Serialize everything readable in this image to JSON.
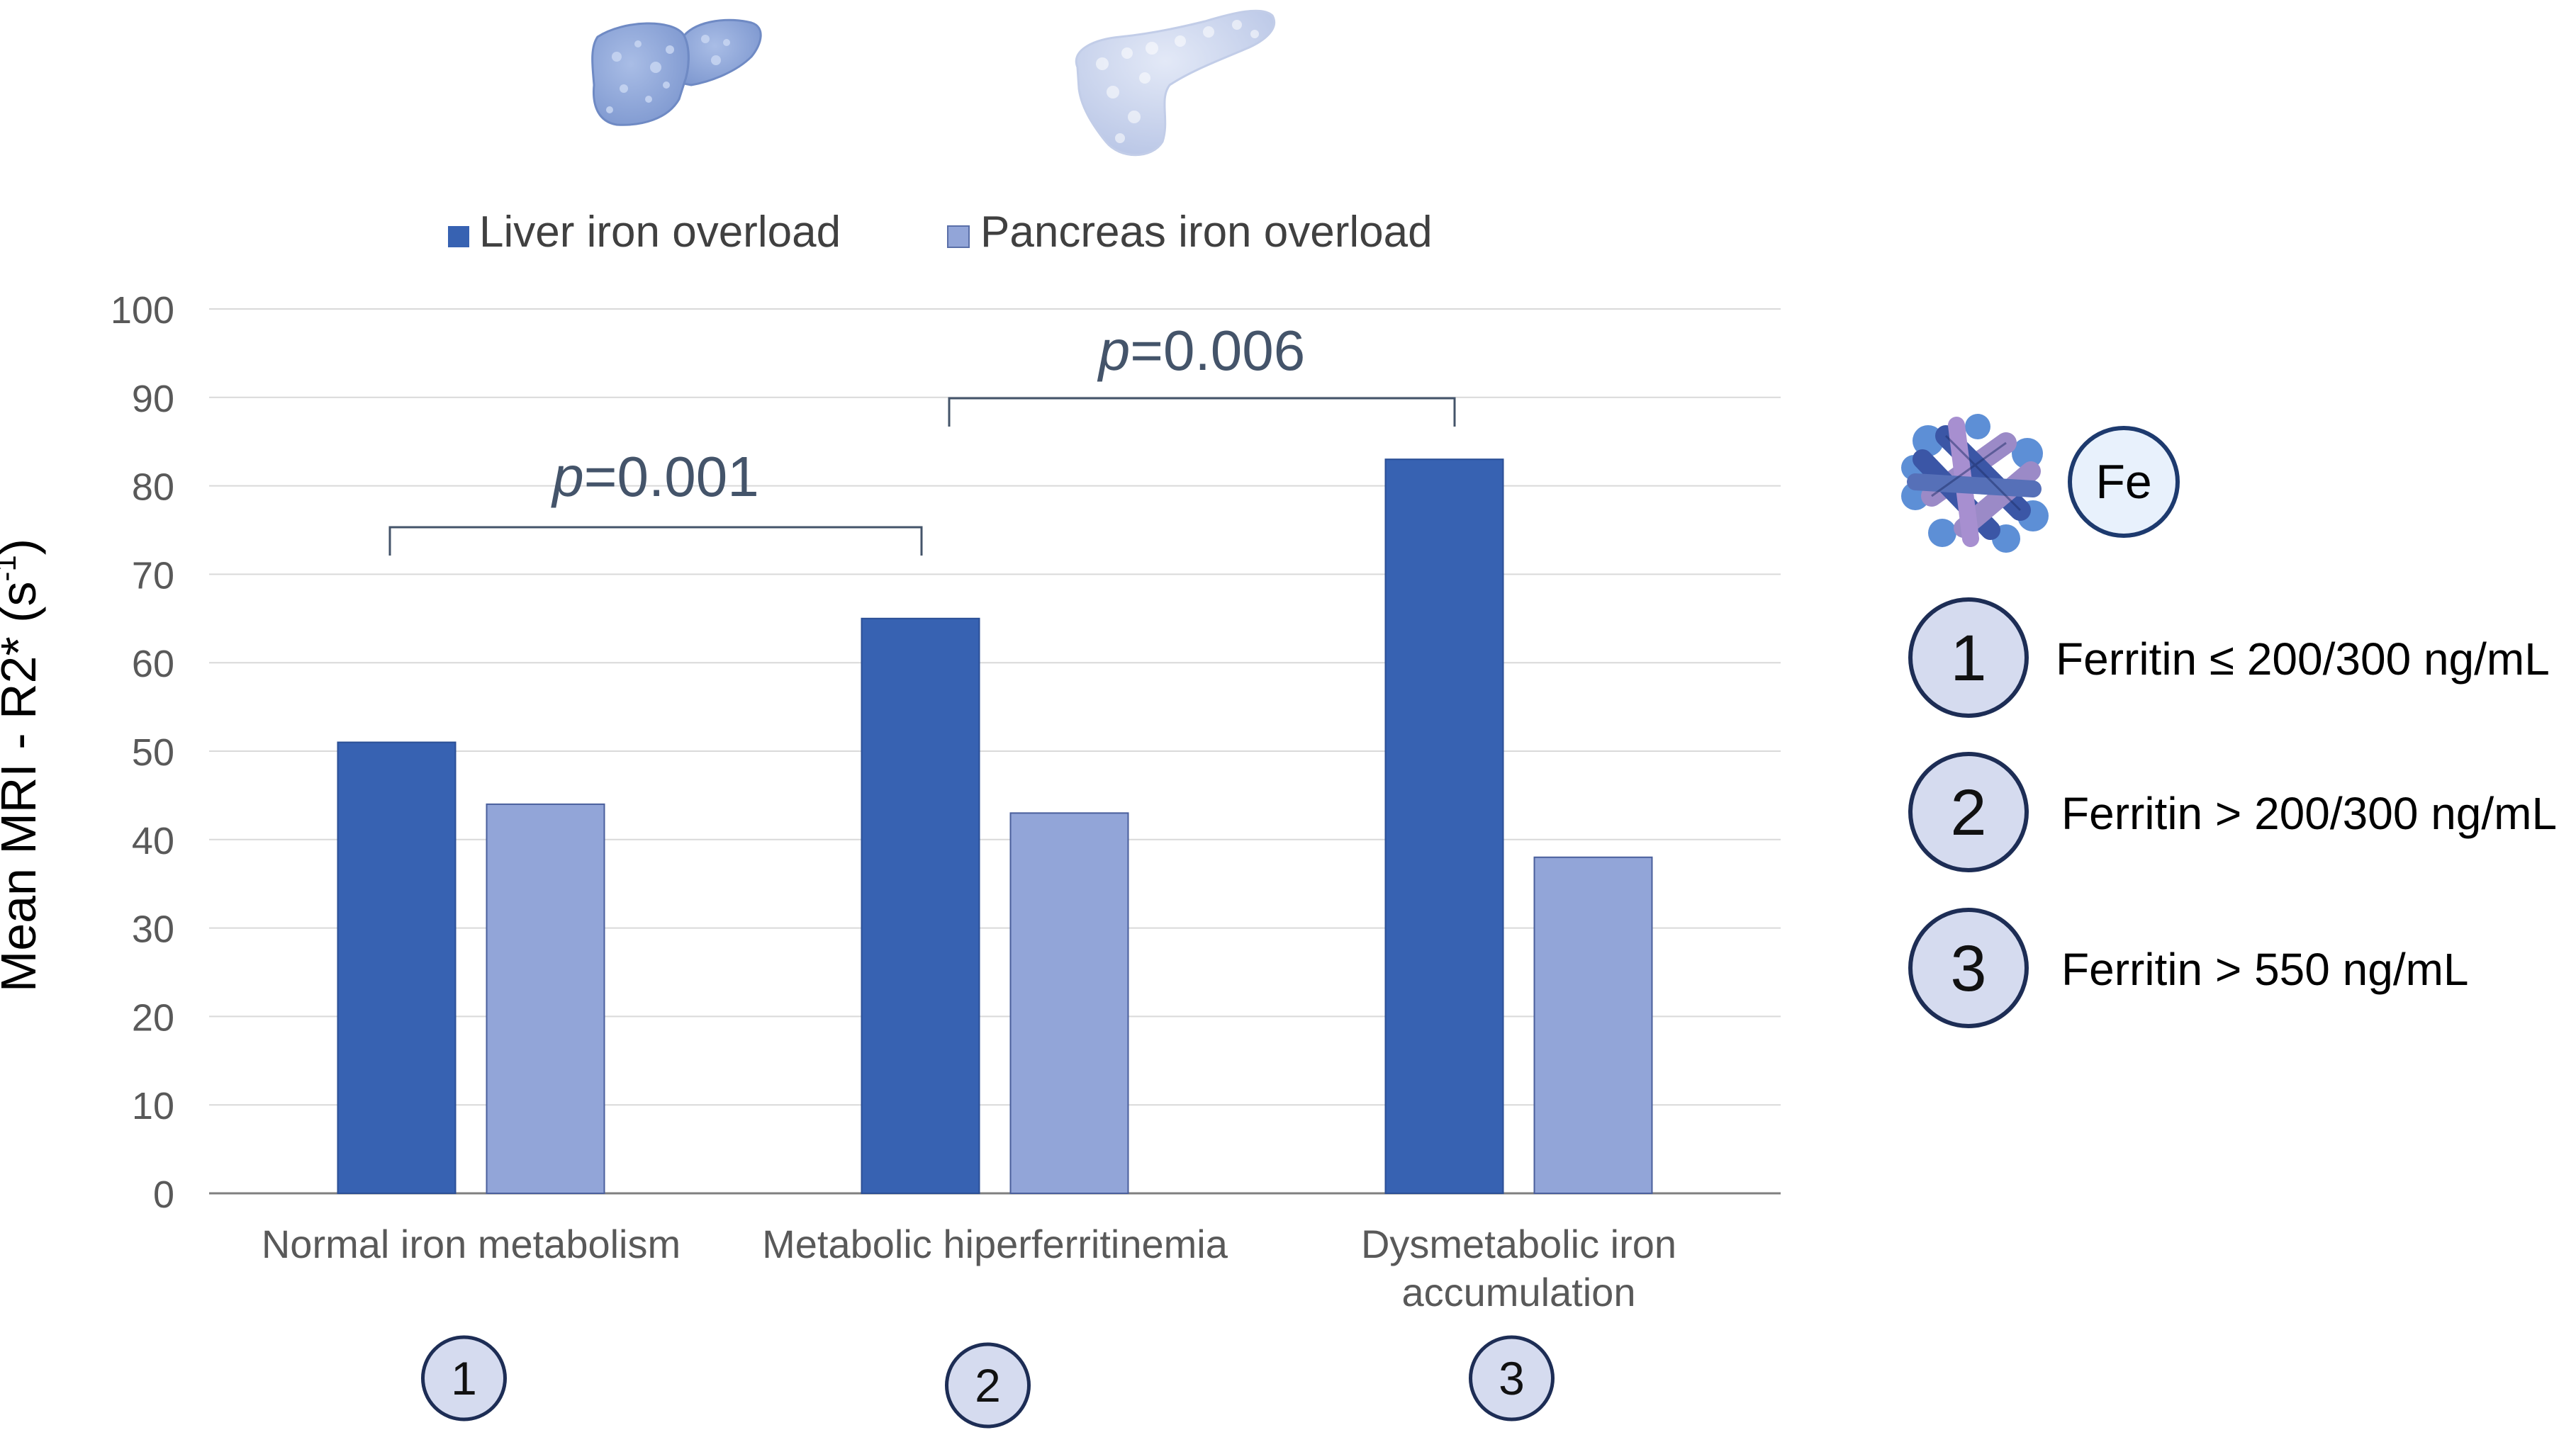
{
  "chart_data": {
    "type": "bar",
    "categories": [
      "Normal iron metabolism",
      "Metabolic hiperferritinemia",
      "Dysmetabolic iron accumulation"
    ],
    "category_labels": [
      [
        "Normal iron metabolism"
      ],
      [
        "Metabolic hiperferritinemia"
      ],
      [
        "Dysmetabolic iron",
        "accumulation"
      ]
    ],
    "category_numbers": [
      "1",
      "2",
      "3"
    ],
    "series": [
      {
        "name": "Liver iron overload",
        "values": [
          51,
          65,
          83
        ],
        "color": "#3762b2"
      },
      {
        "name": "Pancreas iron overload",
        "values": [
          44,
          43,
          38
        ],
        "color": "#92a5d8"
      }
    ],
    "ylabel_main": "Mean MRI - R2* (s",
    "ylabel_sup": "-1",
    "ylabel_end": ")",
    "ylim": [
      0,
      100
    ],
    "yticks": [
      0,
      10,
      20,
      30,
      40,
      50,
      60,
      70,
      80,
      90,
      100
    ],
    "grid": true,
    "legend_position": "top",
    "annotations": [
      {
        "italic": "p",
        "text": "=0.001",
        "from_category": 0,
        "to_category": 1
      },
      {
        "italic": "p",
        "text": "=0.006",
        "from_category": 1,
        "to_category": 2
      }
    ]
  },
  "side_legend": {
    "fe_label": "Fe",
    "items": [
      {
        "number": "1",
        "text": "Ferritin ≤ 200/300 ng/mL"
      },
      {
        "number": "2",
        "text": "Ferritin > 200/300 ng/mL"
      },
      {
        "number": "3",
        "text": "Ferritin > 550 ng/mL"
      }
    ]
  },
  "icons": [
    "liver-icon",
    "pancreas-icon",
    "ferritin-molecule-icon"
  ]
}
